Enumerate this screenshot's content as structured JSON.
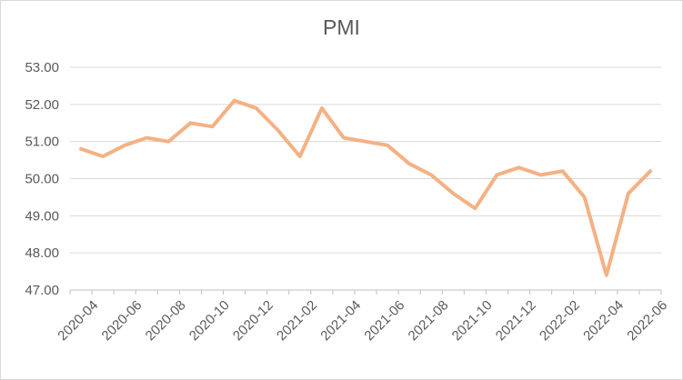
{
  "chart_data": {
    "type": "line",
    "title": "PMI",
    "xlabel": "",
    "ylabel": "",
    "ylim": [
      47,
      53
    ],
    "yticks": [
      "47.00",
      "48.00",
      "49.00",
      "50.00",
      "51.00",
      "52.00",
      "53.00"
    ],
    "xtick_labels": [
      "2020-04",
      "2020-06",
      "2020-08",
      "2020-10",
      "2020-12",
      "2021-02",
      "2021-04",
      "2021-06",
      "2021-08",
      "2021-10",
      "2021-12",
      "2022-02",
      "2022-04",
      "2022-06"
    ],
    "grid": true,
    "legend": "none",
    "color": "#f4b183",
    "x": [
      "2020-04",
      "2020-05",
      "2020-06",
      "2020-07",
      "2020-08",
      "2020-09",
      "2020-10",
      "2020-11",
      "2020-12",
      "2021-01",
      "2021-02",
      "2021-03",
      "2021-04",
      "2021-05",
      "2021-06",
      "2021-07",
      "2021-08",
      "2021-09",
      "2021-10",
      "2021-11",
      "2021-12",
      "2022-01",
      "2022-02",
      "2022-03",
      "2022-04",
      "2022-05",
      "2022-06"
    ],
    "values": [
      50.8,
      50.6,
      50.9,
      51.1,
      51.0,
      51.5,
      51.4,
      52.1,
      51.9,
      51.3,
      50.6,
      51.9,
      51.1,
      51.0,
      50.9,
      50.4,
      50.1,
      49.6,
      49.2,
      50.1,
      50.3,
      50.1,
      50.2,
      49.5,
      47.4,
      49.6,
      50.2
    ]
  }
}
